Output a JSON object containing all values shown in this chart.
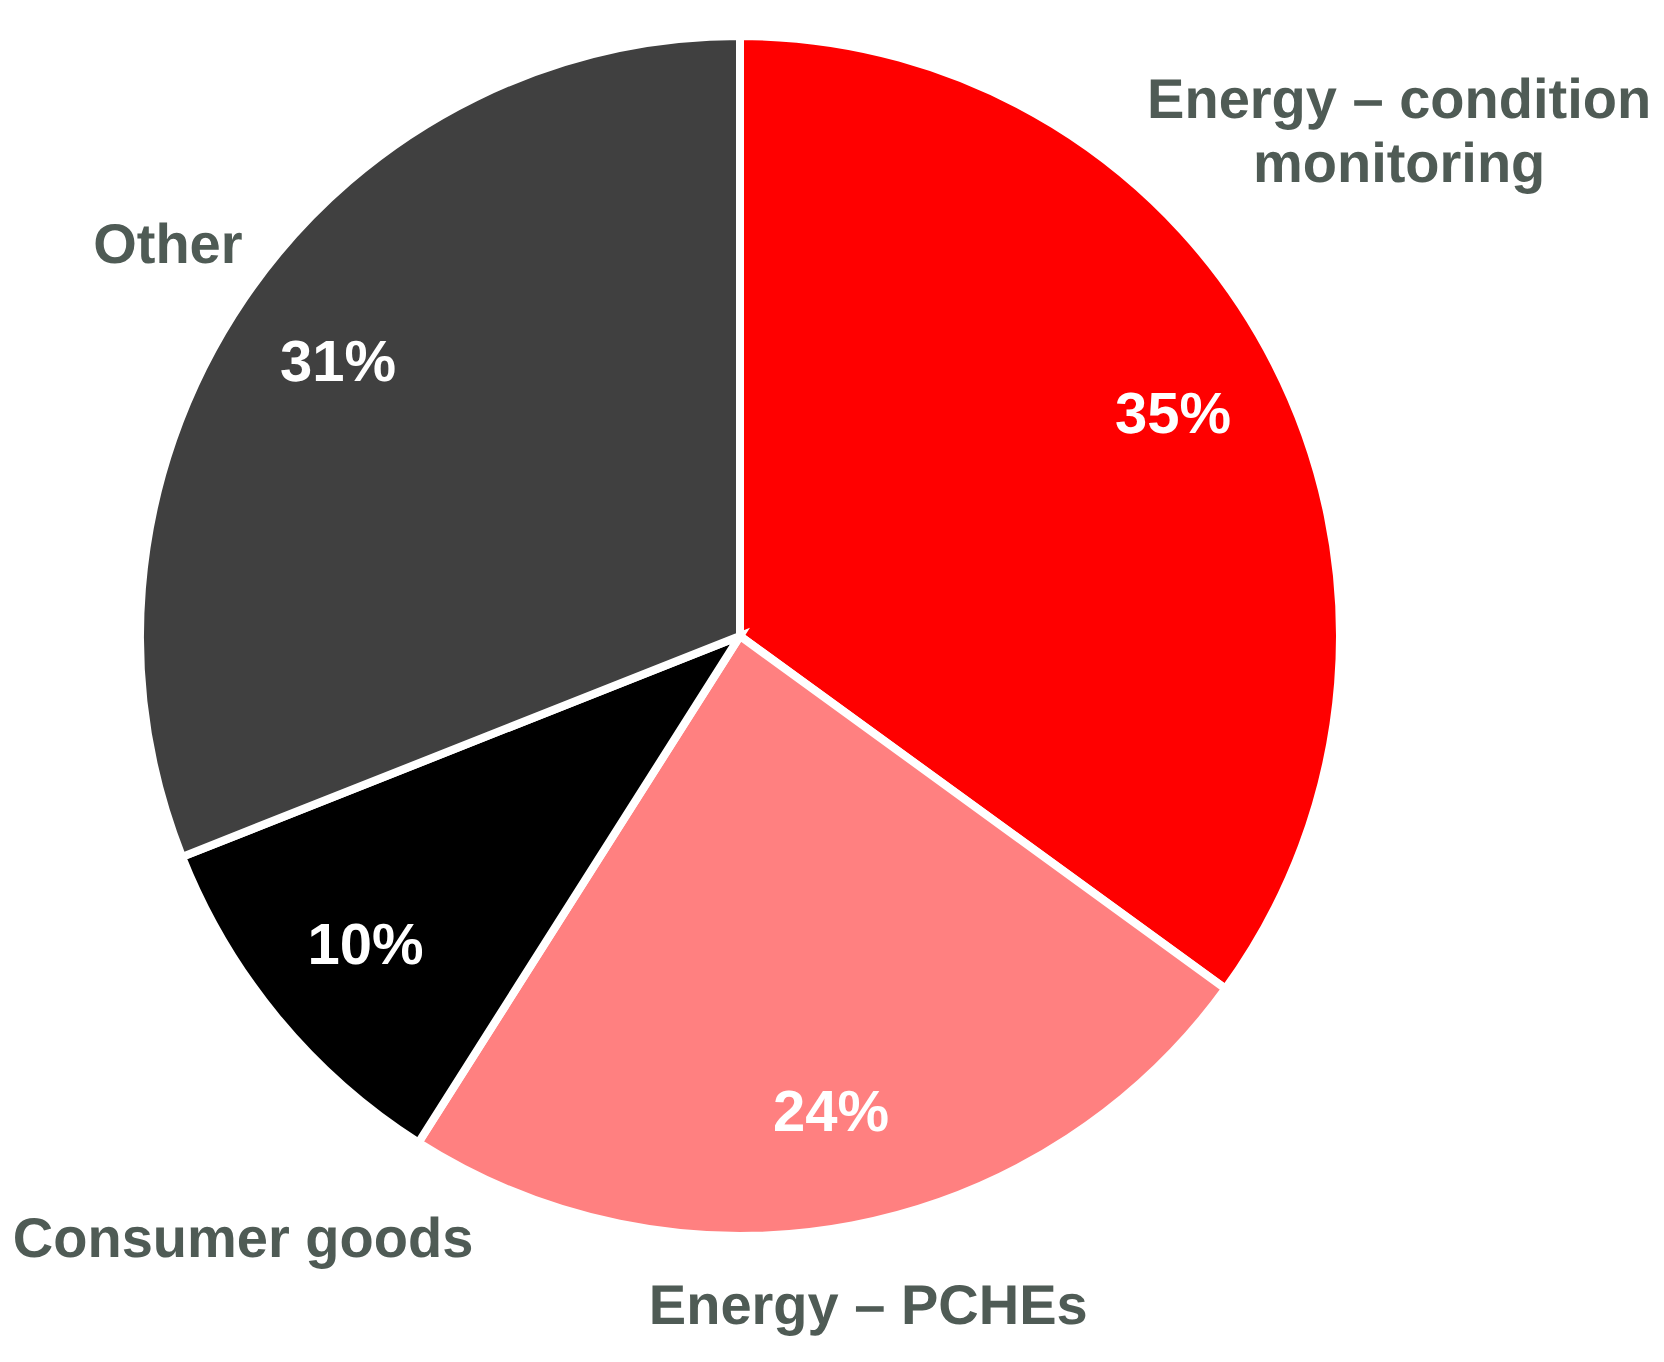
{
  "chart_data": {
    "type": "pie",
    "categories": [
      "Energy – condition monitoring",
      "Energy – PCHEs",
      "Consumer goods",
      "Other"
    ],
    "values": [
      35,
      24,
      10,
      31
    ],
    "colors": [
      "#ff0000",
      "#ff8080",
      "#000000",
      "#404040"
    ],
    "value_labels": [
      "35%",
      "24%",
      "10%",
      "31%"
    ]
  }
}
